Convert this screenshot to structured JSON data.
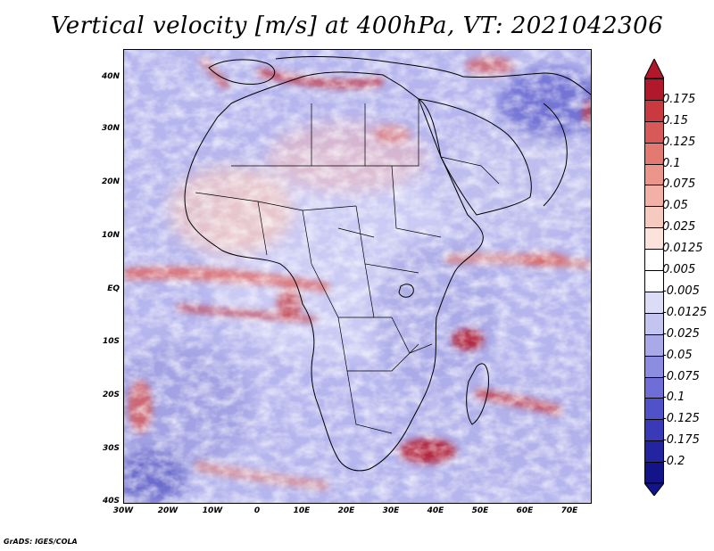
{
  "title": "Vertical velocity [m/s] at 400hPa, VT: 2021042306",
  "footer": "GrADS: IGES/COLA",
  "lat_labels": [
    "40N",
    "30N",
    "20N",
    "10N",
    "EQ",
    "10S",
    "20S",
    "30S",
    "40S"
  ],
  "lon_labels": [
    "30W",
    "20W",
    "10W",
    "0",
    "10E",
    "20E",
    "30E",
    "40E",
    "50E",
    "60E",
    "70E"
  ],
  "colorbar": {
    "labels": [
      "0.175",
      "0.15",
      "0.125",
      "0.1",
      "0.075",
      "0.05",
      "0.025",
      "0.0125",
      "0.005",
      "-0.005",
      "-0.0125",
      "-0.025",
      "-0.05",
      "-0.075",
      "-0.1",
      "-0.125",
      "-0.175",
      "-0.2"
    ],
    "colors": [
      "#b2182b",
      "#c83a3f",
      "#d75a58",
      "#e27a72",
      "#eb958b",
      "#f2b0a6",
      "#f7cac0",
      "#fbe2da",
      "#ffffff",
      "#ffffff",
      "#dcdcf7",
      "#c4c4f0",
      "#a9a9e8",
      "#8c8ce0",
      "#6e6ed6",
      "#5252c8",
      "#3a3ab8",
      "#2424a0",
      "#14148a"
    ]
  },
  "chart_data": {
    "type": "heatmap",
    "title": "Vertical velocity [m/s] at 400hPa, VT: 2021042306",
    "variable": "Vertical velocity",
    "units": "m/s",
    "level": "400hPa",
    "valid_time": "2021042306",
    "lon_range": [
      -30,
      75
    ],
    "lat_range": [
      -40,
      45
    ],
    "colorbar_levels": [
      0.175,
      0.15,
      0.125,
      0.1,
      0.075,
      0.05,
      0.025,
      0.0125,
      0.005,
      -0.005,
      -0.0125,
      -0.025,
      -0.05,
      -0.075,
      -0.1,
      -0.125,
      -0.175,
      -0.2
    ]
  }
}
